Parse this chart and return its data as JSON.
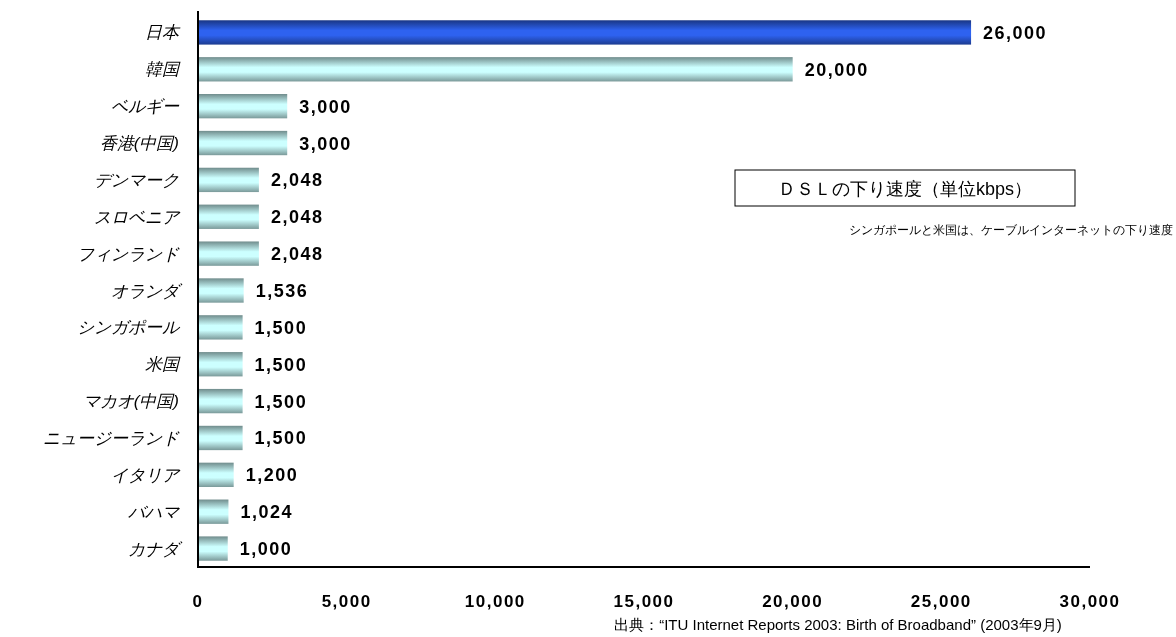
{
  "chart_data": {
    "type": "bar",
    "orientation": "horizontal",
    "title": "ＤＳＬの下り速度（単位kbps）",
    "categories": [
      "日本",
      "韓国",
      "ベルギー",
      "香港(中国)",
      "デンマーク",
      "スロベニア",
      "フィンランド",
      "オランダ",
      "シンガポール",
      "米国",
      "マカオ(中国)",
      "ニュージーランド",
      "イタリア",
      "バハマ",
      "カナダ"
    ],
    "values": [
      26000,
      20000,
      3000,
      3000,
      2048,
      2048,
      2048,
      1536,
      1500,
      1500,
      1500,
      1500,
      1200,
      1024,
      1000
    ],
    "value_labels": [
      "26,000",
      "20,000",
      "3,000",
      "3,000",
      "2,048",
      "2,048",
      "2,048",
      "1,536",
      "1,500",
      "1,500",
      "1,500",
      "1,500",
      "1,200",
      "1,024",
      "1,000"
    ],
    "colors": [
      "#2e62f0",
      "#ccffff",
      "#ccffff",
      "#ccffff",
      "#ccffff",
      "#ccffff",
      "#ccffff",
      "#ccffff",
      "#ccffff",
      "#ccffff",
      "#ccffff",
      "#ccffff",
      "#ccffff",
      "#ccffff",
      "#ccffff"
    ],
    "xlim": [
      0,
      30000
    ],
    "xticks": [
      0,
      {
        "value": 5000,
        "label": "5,000"
      },
      {
        "value": 10000,
        "label": "10,000"
      },
      {
        "value": 15000,
        "label": "15,000"
      },
      {
        "value": 20000,
        "label": "20,000"
      },
      {
        "value": 25000,
        "label": "25,000"
      },
      {
        "value": 30000,
        "label": "30,000"
      }
    ],
    "annotations": [
      "シンガポールと米国は、ケーブルインターネットの下り速度",
      "出典：“ITU Internet Reports 2003: Birth of Broadband” (2003年9月)"
    ]
  }
}
